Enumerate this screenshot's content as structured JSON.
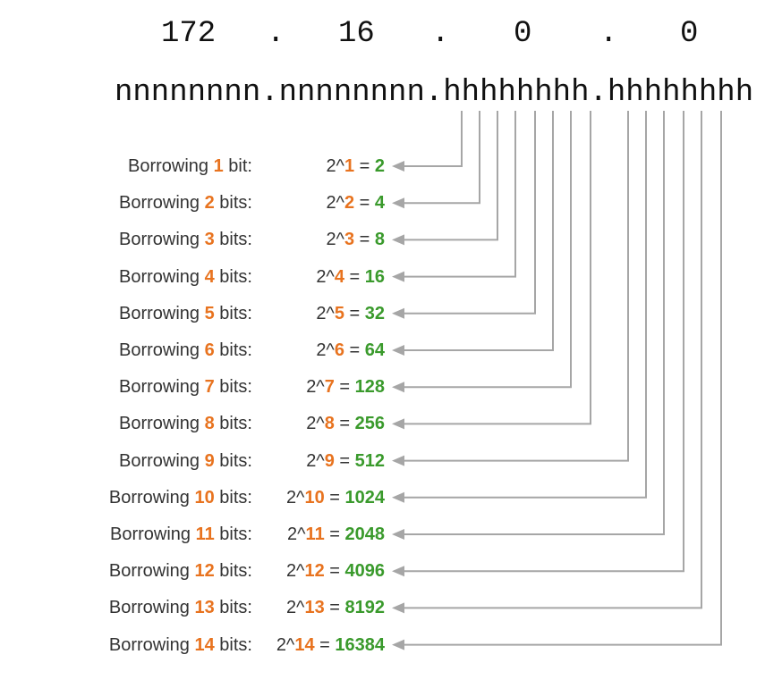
{
  "ip_octets": [
    "172",
    ".",
    "16",
    ".",
    "0",
    ".",
    "0"
  ],
  "bit_pattern": "nnnnnnnn.nnnnnnnn.hhhhhhhh.hhhhhhhh",
  "rows": [
    {
      "prefix": "Borrowing ",
      "n": "1",
      "unit": " bit:",
      "base": "2^",
      "exp": "1",
      "eq": " = ",
      "result": "2"
    },
    {
      "prefix": "Borrowing ",
      "n": "2",
      "unit": " bits:",
      "base": "2^",
      "exp": "2",
      "eq": " = ",
      "result": "4"
    },
    {
      "prefix": "Borrowing ",
      "n": "3",
      "unit": " bits:",
      "base": "2^",
      "exp": "3",
      "eq": " = ",
      "result": "8"
    },
    {
      "prefix": "Borrowing ",
      "n": "4",
      "unit": " bits:",
      "base": "2^",
      "exp": "4",
      "eq": " = ",
      "result": "16"
    },
    {
      "prefix": "Borrowing ",
      "n": "5",
      "unit": " bits:",
      "base": "2^",
      "exp": "5",
      "eq": " = ",
      "result": "32"
    },
    {
      "prefix": "Borrowing ",
      "n": "6",
      "unit": " bits:",
      "base": "2^",
      "exp": "6",
      "eq": " = ",
      "result": "64"
    },
    {
      "prefix": "Borrowing ",
      "n": "7",
      "unit": " bits:",
      "base": "2^",
      "exp": "7",
      "eq": " = ",
      "result": "128"
    },
    {
      "prefix": "Borrowing ",
      "n": "8",
      "unit": " bits:",
      "base": "2^",
      "exp": "8",
      "eq": " = ",
      "result": "256"
    },
    {
      "prefix": "Borrowing ",
      "n": "9",
      "unit": " bits:",
      "base": "2^",
      "exp": "9",
      "eq": " = ",
      "result": "512"
    },
    {
      "prefix": "Borrowing ",
      "n": "10",
      "unit": " bits:",
      "base": "2^",
      "exp": "10",
      "eq": " = ",
      "result": "1024"
    },
    {
      "prefix": "Borrowing ",
      "n": "11",
      "unit": " bits:",
      "base": "2^",
      "exp": "11",
      "eq": " = ",
      "result": "2048"
    },
    {
      "prefix": "Borrowing ",
      "n": "12",
      "unit": " bits:",
      "base": "2^",
      "exp": "12",
      "eq": " = ",
      "result": "4096"
    },
    {
      "prefix": "Borrowing ",
      "n": "13",
      "unit": " bits:",
      "base": "2^",
      "exp": "13",
      "eq": " = ",
      "result": "8192"
    },
    {
      "prefix": "Borrowing ",
      "n": "14",
      "unit": " bits:",
      "base": "2^",
      "exp": "14",
      "eq": " = ",
      "result": "16384"
    }
  ],
  "colors": {
    "count_orange": "#e8731f",
    "result_green": "#3a9a2c",
    "line_gray": "#a6a6a6",
    "text_dark": "#333333"
  }
}
